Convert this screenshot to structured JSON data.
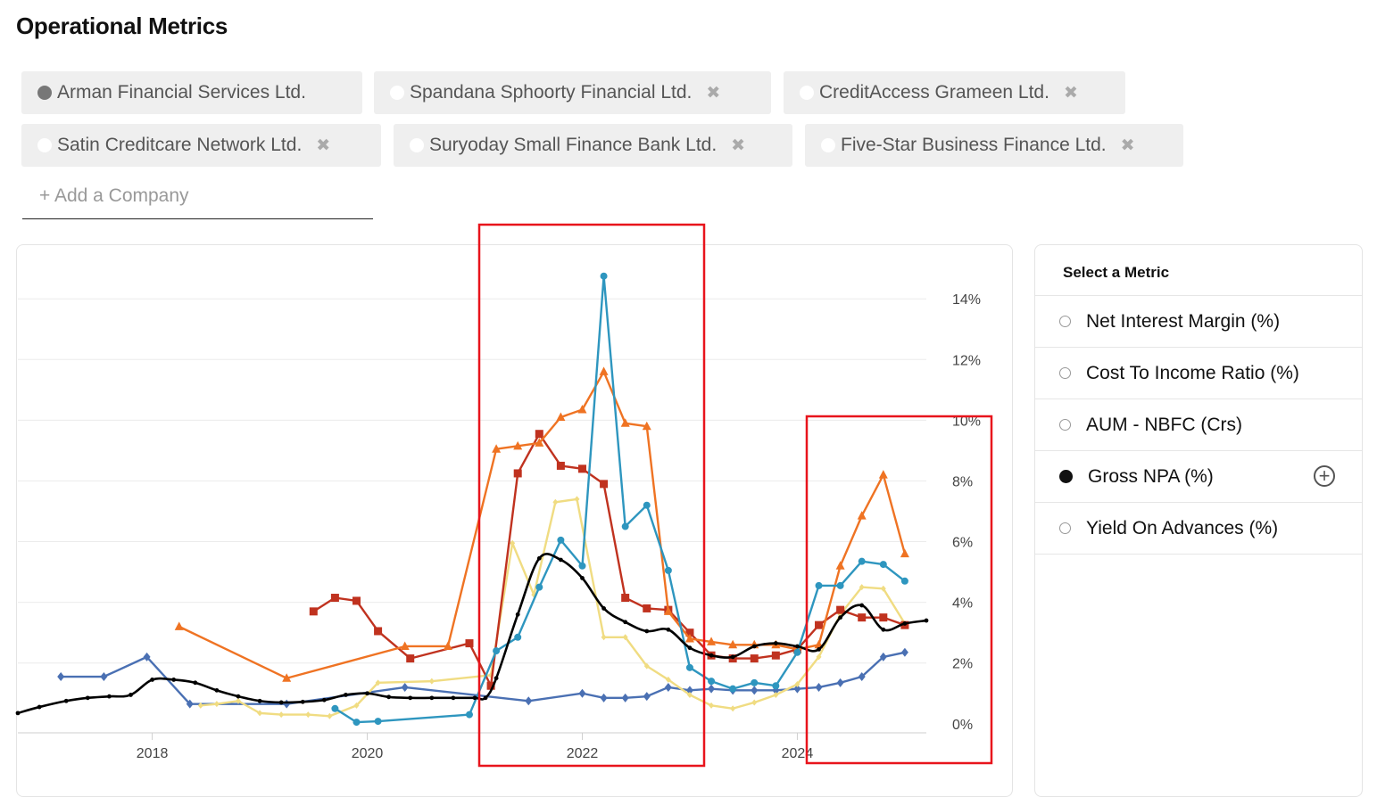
{
  "page_title": "Operational Metrics",
  "companies": [
    {
      "name": "Arman Financial Services Ltd.",
      "removable": false,
      "selected": true
    },
    {
      "name": "Spandana Sphoorty Financial Ltd.",
      "removable": true
    },
    {
      "name": "CreditAccess Grameen Ltd.",
      "removable": true
    },
    {
      "name": "Satin Creditcare Network Ltd.",
      "removable": true
    },
    {
      "name": "Suryoday Small Finance Bank Ltd.",
      "removable": true
    },
    {
      "name": "Five-Star Business Finance Ltd.",
      "removable": true
    }
  ],
  "remove_glyph": "✖",
  "add_company_label": "+ Add a Company",
  "metric_panel": {
    "title": "Select a Metric",
    "metrics": [
      {
        "label": "Net Interest Margin (%)",
        "selected": false
      },
      {
        "label": "Cost To Income Ratio (%)",
        "selected": false
      },
      {
        "label": "AUM - NBFC (Crs)",
        "selected": false
      },
      {
        "label": "Gross NPA (%)",
        "selected": true
      },
      {
        "label": "Yield On Advances (%)",
        "selected": false
      }
    ],
    "add_icon": "plus-circle-icon"
  },
  "highlight_color": "#e8141c",
  "chart_data": {
    "type": "line",
    "xlim": [
      2016.75,
      2025.2
    ],
    "ylim": [
      -0.3,
      14.8
    ],
    "x_ticks": [
      2018,
      2020,
      2022,
      2024
    ],
    "x_tick_labels": [
      "2018",
      "2020",
      "2022",
      "2024"
    ],
    "y_ticks": [
      0,
      2,
      4,
      6,
      8,
      10,
      12,
      14
    ],
    "y_tick_labels": [
      "0%",
      "2%",
      "4%",
      "6%",
      "8%",
      "10%",
      "12%",
      "14%"
    ],
    "grid": "horizontal",
    "series": [
      {
        "color": "#000000",
        "marker": "circle-small",
        "smooth": true,
        "points": [
          [
            2016.75,
            0.35
          ],
          [
            2016.95,
            0.55
          ],
          [
            2017.2,
            0.75
          ],
          [
            2017.4,
            0.85
          ],
          [
            2017.6,
            0.9
          ],
          [
            2017.8,
            0.95
          ],
          [
            2018.0,
            1.45
          ],
          [
            2018.2,
            1.45
          ],
          [
            2018.4,
            1.35
          ],
          [
            2018.6,
            1.1
          ],
          [
            2018.8,
            0.9
          ],
          [
            2019.0,
            0.75
          ],
          [
            2019.2,
            0.7
          ],
          [
            2019.4,
            0.72
          ],
          [
            2019.6,
            0.78
          ],
          [
            2019.8,
            0.95
          ],
          [
            2020.0,
            1.0
          ],
          [
            2020.2,
            0.88
          ],
          [
            2020.4,
            0.85
          ],
          [
            2020.6,
            0.85
          ],
          [
            2020.8,
            0.85
          ],
          [
            2021.0,
            0.85
          ],
          [
            2021.1,
            0.85
          ],
          [
            2021.2,
            1.5
          ],
          [
            2021.4,
            3.6
          ],
          [
            2021.6,
            5.45
          ],
          [
            2021.8,
            5.4
          ],
          [
            2022.0,
            4.8
          ],
          [
            2022.2,
            3.8
          ],
          [
            2022.4,
            3.35
          ],
          [
            2022.6,
            3.05
          ],
          [
            2022.8,
            3.1
          ],
          [
            2023.0,
            2.5
          ],
          [
            2023.2,
            2.25
          ],
          [
            2023.4,
            2.2
          ],
          [
            2023.6,
            2.55
          ],
          [
            2023.8,
            2.65
          ],
          [
            2024.0,
            2.55
          ],
          [
            2024.2,
            2.45
          ],
          [
            2024.4,
            3.5
          ],
          [
            2024.6,
            3.9
          ],
          [
            2024.8,
            3.1
          ],
          [
            2025.0,
            3.3
          ],
          [
            2025.2,
            3.4
          ]
        ]
      },
      {
        "color": "#2e96bf",
        "marker": "circle",
        "smooth": false,
        "points": [
          [
            2019.7,
            0.5
          ],
          [
            2019.9,
            0.05
          ],
          [
            2020.1,
            0.08
          ],
          [
            2020.95,
            0.3
          ],
          [
            2021.2,
            2.4
          ],
          [
            2021.4,
            2.85
          ],
          [
            2021.6,
            4.5
          ],
          [
            2021.8,
            6.05
          ],
          [
            2022.0,
            5.2
          ],
          [
            2022.2,
            14.75
          ],
          [
            2022.4,
            6.5
          ],
          [
            2022.6,
            7.2
          ],
          [
            2022.8,
            5.05
          ],
          [
            2023.0,
            1.85
          ],
          [
            2023.2,
            1.4
          ],
          [
            2023.4,
            1.15
          ],
          [
            2023.6,
            1.35
          ],
          [
            2023.8,
            1.25
          ],
          [
            2024.0,
            2.35
          ],
          [
            2024.2,
            4.55
          ],
          [
            2024.4,
            4.55
          ],
          [
            2024.6,
            5.35
          ],
          [
            2024.8,
            5.25
          ],
          [
            2025.0,
            4.7
          ]
        ]
      },
      {
        "color": "#ef7323",
        "marker": "triangle",
        "smooth": false,
        "points": [
          [
            2018.25,
            3.2
          ],
          [
            2019.25,
            1.5
          ],
          [
            2020.35,
            2.55
          ],
          [
            2020.75,
            2.55
          ],
          [
            2021.2,
            9.05
          ],
          [
            2021.4,
            9.15
          ],
          [
            2021.6,
            9.25
          ],
          [
            2021.8,
            10.1
          ],
          [
            2022.0,
            10.35
          ],
          [
            2022.2,
            11.6
          ],
          [
            2022.4,
            9.9
          ],
          [
            2022.6,
            9.8
          ],
          [
            2022.8,
            3.7
          ],
          [
            2023.0,
            2.8
          ],
          [
            2023.2,
            2.7
          ],
          [
            2023.4,
            2.6
          ],
          [
            2023.6,
            2.6
          ],
          [
            2023.8,
            2.6
          ],
          [
            2024.0,
            2.45
          ],
          [
            2024.2,
            2.6
          ],
          [
            2024.4,
            5.2
          ],
          [
            2024.6,
            6.85
          ],
          [
            2024.8,
            8.2
          ],
          [
            2025.0,
            5.6
          ]
        ]
      },
      {
        "color": "#c0321f",
        "marker": "square",
        "smooth": false,
        "points": [
          [
            2019.5,
            3.7
          ],
          [
            2019.7,
            4.15
          ],
          [
            2019.9,
            4.05
          ],
          [
            2020.1,
            3.05
          ],
          [
            2020.4,
            2.15
          ],
          [
            2020.95,
            2.65
          ],
          [
            2021.15,
            1.25
          ],
          [
            2021.4,
            8.25
          ],
          [
            2021.6,
            9.55
          ],
          [
            2021.8,
            8.5
          ],
          [
            2022.0,
            8.4
          ],
          [
            2022.2,
            7.9
          ],
          [
            2022.4,
            4.15
          ],
          [
            2022.6,
            3.8
          ],
          [
            2022.8,
            3.75
          ],
          [
            2023.0,
            3.0
          ],
          [
            2023.2,
            2.25
          ],
          [
            2023.4,
            2.15
          ],
          [
            2023.6,
            2.15
          ],
          [
            2023.8,
            2.25
          ],
          [
            2024.0,
            2.45
          ],
          [
            2024.2,
            3.25
          ],
          [
            2024.4,
            3.75
          ],
          [
            2024.6,
            3.5
          ],
          [
            2024.8,
            3.5
          ],
          [
            2025.0,
            3.25
          ]
        ]
      },
      {
        "color": "#f0dc82",
        "marker": "diamond-small",
        "smooth": false,
        "points": [
          [
            2018.45,
            0.6
          ],
          [
            2018.6,
            0.65
          ],
          [
            2018.8,
            0.75
          ],
          [
            2019.0,
            0.35
          ],
          [
            2019.2,
            0.3
          ],
          [
            2019.45,
            0.3
          ],
          [
            2019.65,
            0.25
          ],
          [
            2019.9,
            0.6
          ],
          [
            2020.1,
            1.35
          ],
          [
            2020.6,
            1.4
          ],
          [
            2021.15,
            1.6
          ],
          [
            2021.35,
            5.95
          ],
          [
            2021.55,
            4.25
          ],
          [
            2021.75,
            7.3
          ],
          [
            2021.95,
            7.4
          ],
          [
            2022.2,
            2.85
          ],
          [
            2022.4,
            2.85
          ],
          [
            2022.6,
            1.9
          ],
          [
            2022.8,
            1.45
          ],
          [
            2023.0,
            0.95
          ],
          [
            2023.2,
            0.6
          ],
          [
            2023.4,
            0.5
          ],
          [
            2023.6,
            0.7
          ],
          [
            2023.8,
            0.95
          ],
          [
            2024.0,
            1.3
          ],
          [
            2024.2,
            2.2
          ],
          [
            2024.4,
            3.6
          ],
          [
            2024.6,
            4.5
          ],
          [
            2024.8,
            4.45
          ],
          [
            2025.0,
            3.3
          ]
        ]
      },
      {
        "color": "#4a70b3",
        "marker": "diamond",
        "smooth": false,
        "points": [
          [
            2017.15,
            1.55
          ],
          [
            2017.55,
            1.55
          ],
          [
            2017.95,
            2.2
          ],
          [
            2018.35,
            0.65
          ],
          [
            2019.25,
            0.65
          ],
          [
            2020.35,
            1.2
          ],
          [
            2021.5,
            0.75
          ],
          [
            2022.0,
            1.0
          ],
          [
            2022.2,
            0.85
          ],
          [
            2022.4,
            0.85
          ],
          [
            2022.6,
            0.9
          ],
          [
            2022.8,
            1.2
          ],
          [
            2023.0,
            1.1
          ],
          [
            2023.2,
            1.15
          ],
          [
            2023.4,
            1.1
          ],
          [
            2023.6,
            1.1
          ],
          [
            2023.8,
            1.1
          ],
          [
            2024.0,
            1.15
          ],
          [
            2024.2,
            1.2
          ],
          [
            2024.4,
            1.35
          ],
          [
            2024.6,
            1.55
          ],
          [
            2024.8,
            2.2
          ],
          [
            2025.0,
            2.35
          ]
        ]
      }
    ]
  }
}
